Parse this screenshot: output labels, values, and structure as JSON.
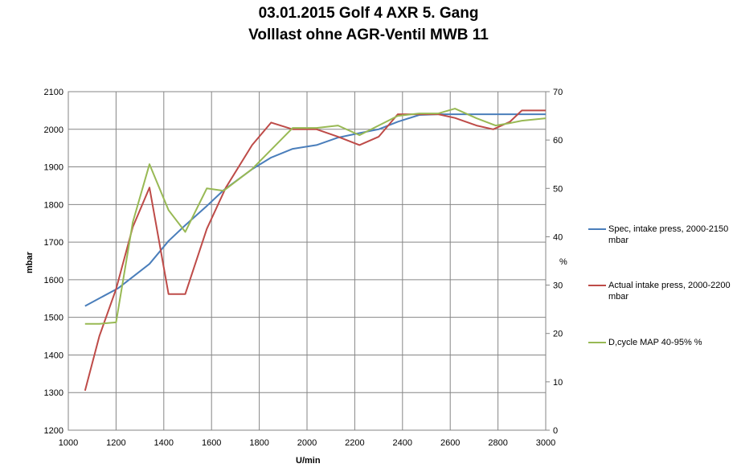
{
  "chart_data": {
    "type": "line",
    "title": "03.01.2015 Golf 4 AXR 5. Gang",
    "subtitle": "Volllast ohne AGR-Ventil MWB 11",
    "xlabel": "U/min",
    "ylabel": "mbar",
    "y2label": "%",
    "xlim": [
      1000,
      3000
    ],
    "ylim": [
      1200,
      2100
    ],
    "y2lim": [
      0,
      70
    ],
    "xticks": [
      1000,
      1200,
      1400,
      1600,
      1800,
      2000,
      2200,
      2400,
      2600,
      2800,
      3000
    ],
    "yticks": [
      1200,
      1300,
      1400,
      1500,
      1600,
      1700,
      1800,
      1900,
      2000,
      2100
    ],
    "y2ticks": [
      0,
      10,
      20,
      30,
      40,
      50,
      60,
      70
    ],
    "grid": "vertical and horizontal",
    "legend_position": "right",
    "series": [
      {
        "name": "Spec, intake press, 2000-2150 mbar",
        "color": "#4a7ebb",
        "axis": "left",
        "x": [
          1070,
          1210,
          1340,
          1420,
          1490,
          1580,
          1650,
          1770,
          1850,
          1940,
          2040,
          2130,
          2220,
          2300,
          2380,
          2470,
          2550,
          2620,
          2710,
          2790,
          2900,
          3000
        ],
        "y": [
          1530,
          1578,
          1642,
          1703,
          1745,
          1796,
          1838,
          1894,
          1925,
          1948,
          1958,
          1978,
          1990,
          2000,
          2020,
          2038,
          2040,
          2040,
          2040,
          2040,
          2040,
          2040
        ]
      },
      {
        "name": "Actual intake press, 2000-2200  mbar",
        "color": "#be4b48",
        "axis": "left",
        "x": [
          1070,
          1130,
          1200,
          1270,
          1340,
          1420,
          1490,
          1580,
          1660,
          1770,
          1850,
          1940,
          2040,
          2130,
          2220,
          2300,
          2380,
          2470,
          2550,
          2620,
          2710,
          2780,
          2850,
          2900,
          3000
        ],
        "y": [
          1305,
          1450,
          1575,
          1740,
          1845,
          1562,
          1562,
          1735,
          1845,
          1958,
          2018,
          2000,
          2000,
          1980,
          1958,
          1980,
          2040,
          2040,
          2040,
          2030,
          2010,
          2000,
          2020,
          2050,
          2050
        ]
      },
      {
        "name": "D,cycle MAP 40-95% %",
        "color": "#98b954",
        "axis": "right",
        "x": [
          1070,
          1130,
          1200,
          1270,
          1340,
          1420,
          1490,
          1580,
          1650,
          1770,
          1850,
          1940,
          2040,
          2130,
          2220,
          2300,
          2380,
          2470,
          2550,
          2620,
          2710,
          2790,
          2850,
          2900,
          3000
        ],
        "y": [
          22,
          22,
          22.3,
          43,
          55,
          45.5,
          41,
          50,
          49.5,
          54,
          58,
          62.5,
          62.5,
          63,
          61,
          63,
          65,
          65.5,
          65.5,
          66.5,
          64.5,
          63,
          63.5,
          64,
          64.5
        ]
      }
    ]
  }
}
